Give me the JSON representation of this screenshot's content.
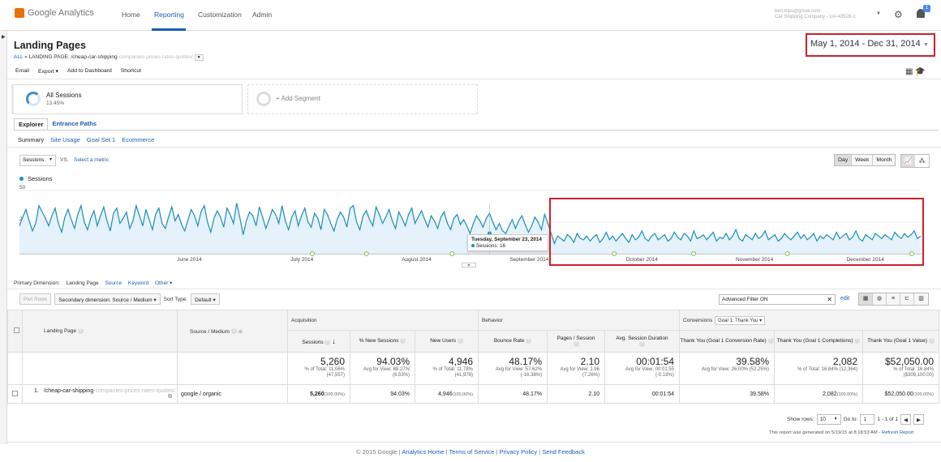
{
  "app": {
    "logo_text": "Google Analytics"
  },
  "nav": {
    "items": [
      "Home",
      "Reporting",
      "Customization",
      "Admin"
    ],
    "active": "Reporting"
  },
  "account": {
    "line1": "ben.trips@gmail.com",
    "line2": "Car Shipping Company - UA-43528-1"
  },
  "notifications": {
    "count": "1"
  },
  "page": {
    "title": "Landing Pages",
    "breadcrumb_all": "ALL",
    "breadcrumb_sep": "»",
    "breadcrumb_dim": "LANDING PAGE: /cheap-car-shipping",
    "breadcrumb_blurred": "-companies-prices-rates-quotes/",
    "date_range": "May 1, 2014 - Dec 31, 2014"
  },
  "toolbar": {
    "email": "Email",
    "export": "Export ▾",
    "dashboard": "Add to Dashboard",
    "shortcut": "Shortcut"
  },
  "segments": {
    "all_sessions": "All Sessions",
    "all_sessions_pct": "13.45%",
    "add_segment": "+ Add Segment"
  },
  "tabs": [
    "Explorer",
    "Entrance Paths"
  ],
  "subtabs": [
    "Summary",
    "Site Usage",
    "Goal Set 1",
    "Ecommerce"
  ],
  "chart_controls": {
    "metric": "Sessions",
    "vs": "VS.",
    "select_metric": "Select a metric",
    "granularity": [
      "Day",
      "Week",
      "Month"
    ],
    "active_granularity": "Day"
  },
  "chart_data": {
    "type": "line",
    "series_name": "Sessions",
    "y_ticks": [
      "50",
      "25"
    ],
    "ylim": [
      0,
      50
    ],
    "x_labels": [
      "June 2014",
      "July 2014",
      "August 2014",
      "September 2014",
      "October 2014",
      "November 2014",
      "December 2014"
    ],
    "x_range": [
      "2014-05-01",
      "2014-12-31"
    ],
    "values": [
      22,
      29,
      35,
      26,
      18,
      24,
      38,
      33,
      28,
      22,
      30,
      36,
      24,
      17,
      29,
      35,
      27,
      20,
      31,
      38,
      25,
      19,
      28,
      34,
      22,
      30,
      37,
      26,
      18,
      32,
      36,
      24,
      28,
      33,
      20,
      26,
      38,
      30,
      22,
      35,
      27,
      19,
      31,
      36,
      24,
      20,
      29,
      37,
      26,
      31,
      23,
      18,
      27,
      35,
      30,
      22,
      33,
      38,
      25,
      17,
      28,
      34,
      29,
      21,
      36,
      31,
      24,
      40,
      28,
      15,
      26,
      33,
      30,
      22,
      37,
      29,
      20,
      27,
      35,
      31,
      24,
      38,
      26,
      19,
      29,
      34,
      22,
      30,
      36,
      25,
      21,
      32,
      28,
      19,
      35,
      31,
      24,
      18,
      27,
      33,
      29,
      21,
      36,
      38,
      25,
      19,
      30,
      34,
      27,
      22,
      37,
      31,
      24,
      29,
      35,
      26,
      20,
      33,
      28,
      22,
      31,
      36,
      24,
      29,
      34,
      27,
      21,
      30,
      26,
      20,
      29,
      33,
      24,
      19,
      28,
      31,
      23,
      27,
      22,
      16,
      24,
      30,
      26,
      21,
      28,
      32,
      25,
      19,
      24,
      18,
      16,
      22,
      27,
      20,
      26,
      30,
      23,
      17,
      22,
      29,
      25,
      19,
      31,
      24,
      16,
      8,
      14,
      12,
      10,
      15,
      13,
      9,
      16,
      12,
      11,
      14,
      10,
      13,
      15,
      9,
      12,
      17,
      11,
      14,
      10,
      13,
      16,
      12,
      9,
      15,
      11,
      13,
      18,
      12,
      10,
      14,
      16,
      11,
      13,
      15,
      10,
      12,
      17,
      13,
      11,
      16,
      14,
      10,
      18,
      12,
      13,
      15,
      11,
      14,
      17,
      10,
      13,
      12,
      16,
      11,
      14,
      19,
      12,
      10,
      15,
      13,
      11,
      16,
      12,
      14,
      18,
      11,
      13,
      15,
      10,
      12,
      16,
      13,
      11,
      14,
      17,
      12,
      15,
      11,
      13,
      16,
      10,
      14,
      12,
      15,
      13,
      11,
      17,
      12,
      14,
      16,
      11,
      13,
      18,
      12,
      10,
      15,
      13,
      11,
      16,
      14,
      12,
      15,
      13,
      11,
      17,
      14,
      12,
      16,
      13,
      15,
      18,
      12,
      14
    ],
    "tooltip": {
      "date": "Tuesday, September 23, 2014",
      "label": "Sessions: 16",
      "value": 16
    }
  },
  "dimensions": {
    "label": "Primary Dimension:",
    "active": "Landing Page",
    "options": [
      "Source",
      "Keyword",
      "Other ▾"
    ]
  },
  "table_controls": {
    "plot_rows": "Plot Rows",
    "secondary_dim": "Secondary dimension: Source / Medium",
    "sort_type_label": "Sort Type:",
    "sort_type": "Default",
    "advanced_filter": "Advanced Filter ON",
    "edit": "edit"
  },
  "table": {
    "groups": {
      "acquisition": "Acquisition",
      "behavior": "Behavior",
      "conversions": "Conversions",
      "goal_select": "Goal 1: Thank You"
    },
    "headers": {
      "landing_page": "Landing Page",
      "source_medium": "Source / Medium",
      "sessions": "Sessions",
      "pct_new": "% New Sessions",
      "new_users": "New Users",
      "bounce": "Bounce Rate",
      "pages": "Pages / Session",
      "duration": "Avg. Session Duration",
      "conv_rate": "Thank You (Goal 1 Conversion Rate)",
      "completions": "Thank You (Goal 1 Completions)",
      "value": "Thank You (Goal 1 Value)"
    },
    "totals": {
      "sessions": "5,260",
      "sessions_sub1": "% of Total: 11.06%",
      "sessions_sub2": "(47,557)",
      "pct_new": "94.03%",
      "pct_new_sub1": "Avg for View: 88.27%",
      "pct_new_sub2": "(6.53%)",
      "new_users": "4,946",
      "new_users_sub1": "% of Total: 11.78%",
      "new_users_sub2": "(41,978)",
      "bounce": "48.17%",
      "bounce_sub1": "Avg for View: 57.62%",
      "bounce_sub2": "(-16.38%)",
      "pages": "2.10",
      "pages_sub1": "Avg for View: 1.96",
      "pages_sub2": "(7.26%)",
      "duration": "00:01:54",
      "duration_sub1": "Avg for View: 00:01:55",
      "duration_sub2": "(-0.18%)",
      "conv_rate": "39.58%",
      "conv_rate_sub1": "Avg for View: 26.00% (52.25%)",
      "completions": "2,082",
      "completions_sub1": "% of Total: 16.84% (12,364)",
      "value": "$52,050.00",
      "value_sub1": "% of Total: 16.84%",
      "value_sub2": "($309,100.00)"
    },
    "rows": [
      {
        "index": "1.",
        "landing_page": "/cheap-car-shipping",
        "landing_page_blur": "-companies-prices-rates-quotes/",
        "source_medium": "google / organic",
        "sessions": "5,260",
        "sessions_pct": "(100.00%)",
        "pct_new": "94.03%",
        "new_users": "4,946",
        "new_users_pct": "(100.00%)",
        "bounce": "48.17%",
        "pages": "2.10",
        "duration": "00:01:54",
        "conv_rate": "39.58%",
        "completions": "2,082",
        "completions_pct": "(100.00%)",
        "value": "$52,050.00",
        "value_pct": "(100.00%)"
      }
    ]
  },
  "pager": {
    "show_rows_label": "Show rows:",
    "show_rows": "10",
    "goto_label": "Go to:",
    "goto": "1",
    "range": "1 - 1 of 1"
  },
  "generated": {
    "text": "This report was generated on 5/19/15 at 8:18:53 AM -",
    "refresh": "Refresh Report"
  },
  "footer": {
    "links": [
      "© 2015 Google",
      "Analytics Home",
      "Terms of Service",
      "Privacy Policy",
      "Send Feedback"
    ]
  }
}
